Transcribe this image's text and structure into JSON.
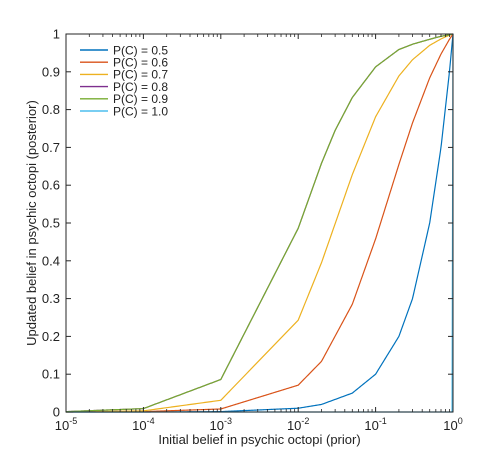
{
  "chart_data": {
    "type": "line",
    "xlabel": "Initial belief in psychic octopi (prior)",
    "ylabel": "Updated belief in psychic octopi (posterior)",
    "x_scale": "log",
    "xlim": [
      1e-05,
      1
    ],
    "ylim": [
      0,
      1
    ],
    "x_ticks": [
      {
        "value": 1e-05,
        "base": "10",
        "exp": "-5"
      },
      {
        "value": 0.0001,
        "base": "10",
        "exp": "-4"
      },
      {
        "value": 0.001,
        "base": "10",
        "exp": "-3"
      },
      {
        "value": 0.01,
        "base": "10",
        "exp": "-2"
      },
      {
        "value": 0.1,
        "base": "10",
        "exp": "-1"
      },
      {
        "value": 1,
        "base": "10",
        "exp": "0"
      }
    ],
    "y_ticks": [
      {
        "value": 0,
        "label": "0"
      },
      {
        "value": 0.1,
        "label": "0.1"
      },
      {
        "value": 0.2,
        "label": "0.2"
      },
      {
        "value": 0.3,
        "label": "0.3"
      },
      {
        "value": 0.4,
        "label": "0.4"
      },
      {
        "value": 0.5,
        "label": "0.5"
      },
      {
        "value": 0.6,
        "label": "0.6"
      },
      {
        "value": 0.7,
        "label": "0.7"
      },
      {
        "value": 0.8,
        "label": "0.8"
      },
      {
        "value": 0.9,
        "label": "0.9"
      },
      {
        "value": 1,
        "label": "1"
      }
    ],
    "grid": false,
    "box": true,
    "legend_position": "top-left",
    "series": [
      {
        "name": "P(C) = 0.5",
        "color": "#0072BD",
        "x": [
          1e-05,
          0.0001,
          0.001,
          0.01,
          0.02,
          0.05,
          0.1,
          0.2,
          0.3,
          0.5,
          0.7,
          0.9,
          1
        ],
        "y": [
          0,
          0,
          0.001,
          0.01,
          0.02,
          0.05,
          0.1,
          0.2,
          0.3,
          0.5,
          0.7,
          0.9,
          1
        ]
      },
      {
        "name": "P(C) = 0.6",
        "color": "#D95319",
        "x": [
          1e-05,
          0.0001,
          0.001,
          0.01,
          0.02,
          0.05,
          0.1,
          0.2,
          0.3,
          0.5,
          0.7,
          0.9,
          1
        ],
        "y": [
          0,
          0.001,
          0.008,
          0.071,
          0.134,
          0.285,
          0.458,
          0.655,
          0.765,
          0.884,
          0.947,
          0.986,
          1
        ]
      },
      {
        "name": "P(C) = 0.7",
        "color": "#EDB120",
        "x": [
          1e-05,
          0.0001,
          0.001,
          0.01,
          0.02,
          0.05,
          0.1,
          0.2,
          0.3,
          0.5,
          0.7,
          0.9,
          1
        ],
        "y": [
          0,
          0.003,
          0.031,
          0.243,
          0.395,
          0.628,
          0.781,
          0.889,
          0.932,
          0.97,
          0.987,
          0.997,
          1
        ]
      },
      {
        "name": "P(C) = 0.8",
        "color": "#7E2F8E",
        "x": [
          1e-05,
          0.0001,
          0.001,
          0.01,
          0.02,
          0.03,
          0.05,
          0.1,
          0.2,
          0.3,
          0.5,
          0.7,
          0.9,
          1
        ],
        "y": [
          0.001,
          0.009,
          0.086,
          0.486,
          0.658,
          0.745,
          0.832,
          0.913,
          0.959,
          0.973,
          0.986,
          0.994,
          0.998,
          1
        ]
      },
      {
        "name": "P(C) = 0.9",
        "color": "#77AC30",
        "x": [
          1e-05,
          0.0001,
          0.001,
          0.01,
          0.02,
          0.03,
          0.05,
          0.1,
          0.2,
          0.3,
          0.5,
          0.7,
          0.9,
          1
        ],
        "y": [
          0.001,
          0.009,
          0.086,
          0.486,
          0.658,
          0.745,
          0.832,
          0.913,
          0.959,
          0.973,
          0.986,
          0.994,
          0.998,
          1
        ]
      },
      {
        "name": "P(C) = 1.0",
        "color": "#4DBEEE",
        "x": [
          1e-05,
          0.1,
          0.99,
          1
        ],
        "y": [
          0,
          0,
          0,
          1
        ]
      }
    ]
  }
}
